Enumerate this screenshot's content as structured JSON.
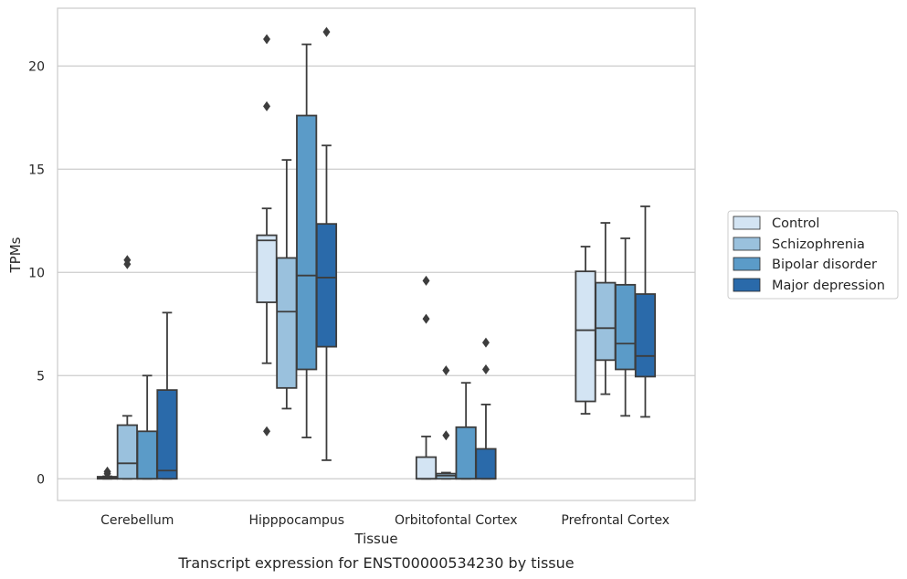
{
  "chart_data": {
    "type": "box",
    "caption": "Transcript expression for ENST00000534230 by tissue",
    "xlabel": "Tissue",
    "ylabel": "TPMs",
    "ylim": [
      -1.05,
      22.8
    ],
    "yticks": [
      0,
      5,
      10,
      15,
      20
    ],
    "grid": "horizontal",
    "legend_position": "right",
    "categories": [
      "Cerebellum",
      "Hipppocampus",
      "Orbitofontal Cortex",
      "Prefrontal Cortex"
    ],
    "series": [
      {
        "name": "Control",
        "color": "#d3e4f3",
        "boxes": [
          {
            "whisker_low": 0.0,
            "q1": 0.0,
            "median": 0.05,
            "q3": 0.1,
            "whisker_high": 0.12,
            "outliers": [
              0.25,
              0.35
            ]
          },
          {
            "whisker_low": 5.6,
            "q1": 8.55,
            "median": 11.55,
            "q3": 11.8,
            "whisker_high": 13.1,
            "outliers": [
              18.05,
              21.3,
              2.3
            ]
          },
          {
            "whisker_low": 0.0,
            "q1": 0.0,
            "median": 0.0,
            "q3": 1.05,
            "whisker_high": 2.05,
            "outliers": [
              7.75,
              9.6
            ]
          },
          {
            "whisker_low": 3.15,
            "q1": 3.75,
            "median": 7.2,
            "q3": 10.05,
            "whisker_high": 11.25,
            "outliers": []
          }
        ]
      },
      {
        "name": "Schizophrenia",
        "color": "#9ac1dd",
        "boxes": [
          {
            "whisker_low": 0.0,
            "q1": 0.0,
            "median": 0.75,
            "q3": 2.6,
            "whisker_high": 3.05,
            "outliers": [
              10.4,
              10.6
            ]
          },
          {
            "whisker_low": 3.4,
            "q1": 4.4,
            "median": 8.1,
            "q3": 10.7,
            "whisker_high": 15.45,
            "outliers": []
          },
          {
            "whisker_low": 0.0,
            "q1": 0.0,
            "median": 0.15,
            "q3": 0.25,
            "whisker_high": 0.3,
            "outliers": [
              2.1,
              5.25
            ]
          },
          {
            "whisker_low": 4.1,
            "q1": 5.75,
            "median": 7.3,
            "q3": 9.5,
            "whisker_high": 12.4,
            "outliers": []
          }
        ]
      },
      {
        "name": "Bipolar disorder",
        "color": "#5b9bc8",
        "boxes": [
          {
            "whisker_low": 0.0,
            "q1": 0.0,
            "median": 0.0,
            "q3": 2.3,
            "whisker_high": 5.0,
            "outliers": []
          },
          {
            "whisker_low": 2.0,
            "q1": 5.3,
            "median": 9.85,
            "q3": 17.6,
            "whisker_high": 21.05,
            "outliers": []
          },
          {
            "whisker_low": 0.0,
            "q1": 0.0,
            "median": 0.0,
            "q3": 2.5,
            "whisker_high": 4.65,
            "outliers": []
          },
          {
            "whisker_low": 3.05,
            "q1": 5.3,
            "median": 6.55,
            "q3": 9.4,
            "whisker_high": 11.65,
            "outliers": []
          }
        ]
      },
      {
        "name": "Major depression",
        "color": "#2a6aaa",
        "boxes": [
          {
            "whisker_low": 0.0,
            "q1": 0.0,
            "median": 0.4,
            "q3": 4.3,
            "whisker_high": 8.05,
            "outliers": []
          },
          {
            "whisker_low": 0.9,
            "q1": 6.4,
            "median": 9.75,
            "q3": 12.35,
            "whisker_high": 16.15,
            "outliers": [
              21.65
            ]
          },
          {
            "whisker_low": 0.0,
            "q1": 0.0,
            "median": 0.0,
            "q3": 1.45,
            "whisker_high": 3.6,
            "outliers": [
              5.3,
              6.6
            ]
          },
          {
            "whisker_low": 3.0,
            "q1": 4.95,
            "median": 5.95,
            "q3": 8.95,
            "whisker_high": 13.2,
            "outliers": []
          }
        ]
      }
    ]
  }
}
